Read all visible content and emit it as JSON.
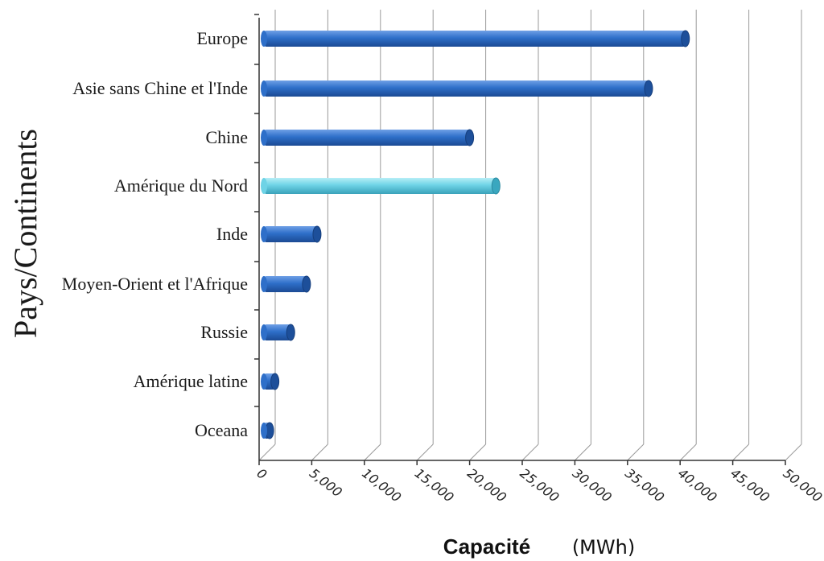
{
  "chart_data": {
    "type": "bar",
    "orientation": "horizontal",
    "categories": [
      "Europe",
      "Asie sans Chine et l'Inde",
      "Chine",
      "Amérique du Nord",
      "Inde",
      "Moyen-Orient et l'Afrique",
      "Russie",
      "Amérique latine",
      "Oceana"
    ],
    "values": [
      40500,
      37000,
      20000,
      22500,
      5500,
      4500,
      3000,
      1500,
      1000
    ],
    "highlighted_category": "Amérique du Nord",
    "colors": {
      "bar": "#2e6fc9",
      "bar_dark": "#1d4f9a",
      "highlight": "#6ed3e6",
      "highlight_dark": "#3aa7bf",
      "grid": "#9a9a9a"
    },
    "xlim": [
      0,
      50000
    ],
    "xticks": [
      "0",
      "5,000",
      "10,000",
      "15,000",
      "20,000",
      "25,000",
      "30,000",
      "35,000",
      "40,000",
      "45,000",
      "50,000"
    ],
    "ylabel": "Pays/Continents",
    "xlabel": "Capacité",
    "xunit": "(MWh)",
    "grid": true,
    "legend": "none"
  }
}
